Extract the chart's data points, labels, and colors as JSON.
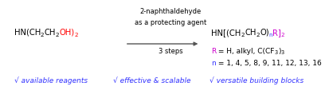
{
  "bg_color": "#ffffff",
  "reactant_parts": [
    {
      "text": "HN(CH",
      "color": "#000000",
      "sub": false
    },
    {
      "text": "2",
      "color": "#000000",
      "sub": true
    },
    {
      "text": "CH",
      "color": "#000000",
      "sub": false
    },
    {
      "text": "2",
      "color": "#000000",
      "sub": true
    },
    {
      "text": "OH)",
      "color": "#ff0000",
      "sub": false
    },
    {
      "text": "2",
      "color": "#ff0000",
      "sub": true
    }
  ],
  "product_parts": [
    {
      "text": "HN[(CH",
      "color": "#000000",
      "sub": false
    },
    {
      "text": "2",
      "color": "#000000",
      "sub": true
    },
    {
      "text": "CH",
      "color": "#000000",
      "sub": false
    },
    {
      "text": "2",
      "color": "#000000",
      "sub": true
    },
    {
      "text": "O)",
      "color": "#000000",
      "sub": false
    },
    {
      "text": "n",
      "color": "#3333ff",
      "sub": true
    },
    {
      "text": "R]",
      "color": "#cc00cc",
      "sub": false
    },
    {
      "text": "2",
      "color": "#cc00cc",
      "sub": true
    }
  ],
  "arrow_top": "2-naphthaldehyde",
  "arrow_mid": "as a protecting agent",
  "arrow_bot": "3 steps",
  "r_parts": [
    {
      "text": "R",
      "color": "#cc00cc",
      "sub": false
    },
    {
      "text": " = H, alkyl, C(CF",
      "color": "#000000",
      "sub": false
    },
    {
      "text": "3",
      "color": "#000000",
      "sub": true
    },
    {
      "text": ")",
      "color": "#000000",
      "sub": false
    },
    {
      "text": "3",
      "color": "#000000",
      "sub": true
    }
  ],
  "n_parts": [
    {
      "text": "n",
      "color": "#3333ff",
      "sub": false
    },
    {
      "text": " = 1, 4, 5, 8, 9, 11, 12, 13, 16",
      "color": "#000000",
      "sub": false
    }
  ],
  "footer_items": [
    "√ available reagents",
    "√ effective & scalable",
    "√ versatile building blocks"
  ],
  "footer_color": "#3333ff",
  "arrow_color": "#555555",
  "label_color": "#000000",
  "fs_main": 7.2,
  "fs_sub": 5.2,
  "fs_label": 6.0,
  "fs_footer": 6.5,
  "fs_rn": 6.5
}
